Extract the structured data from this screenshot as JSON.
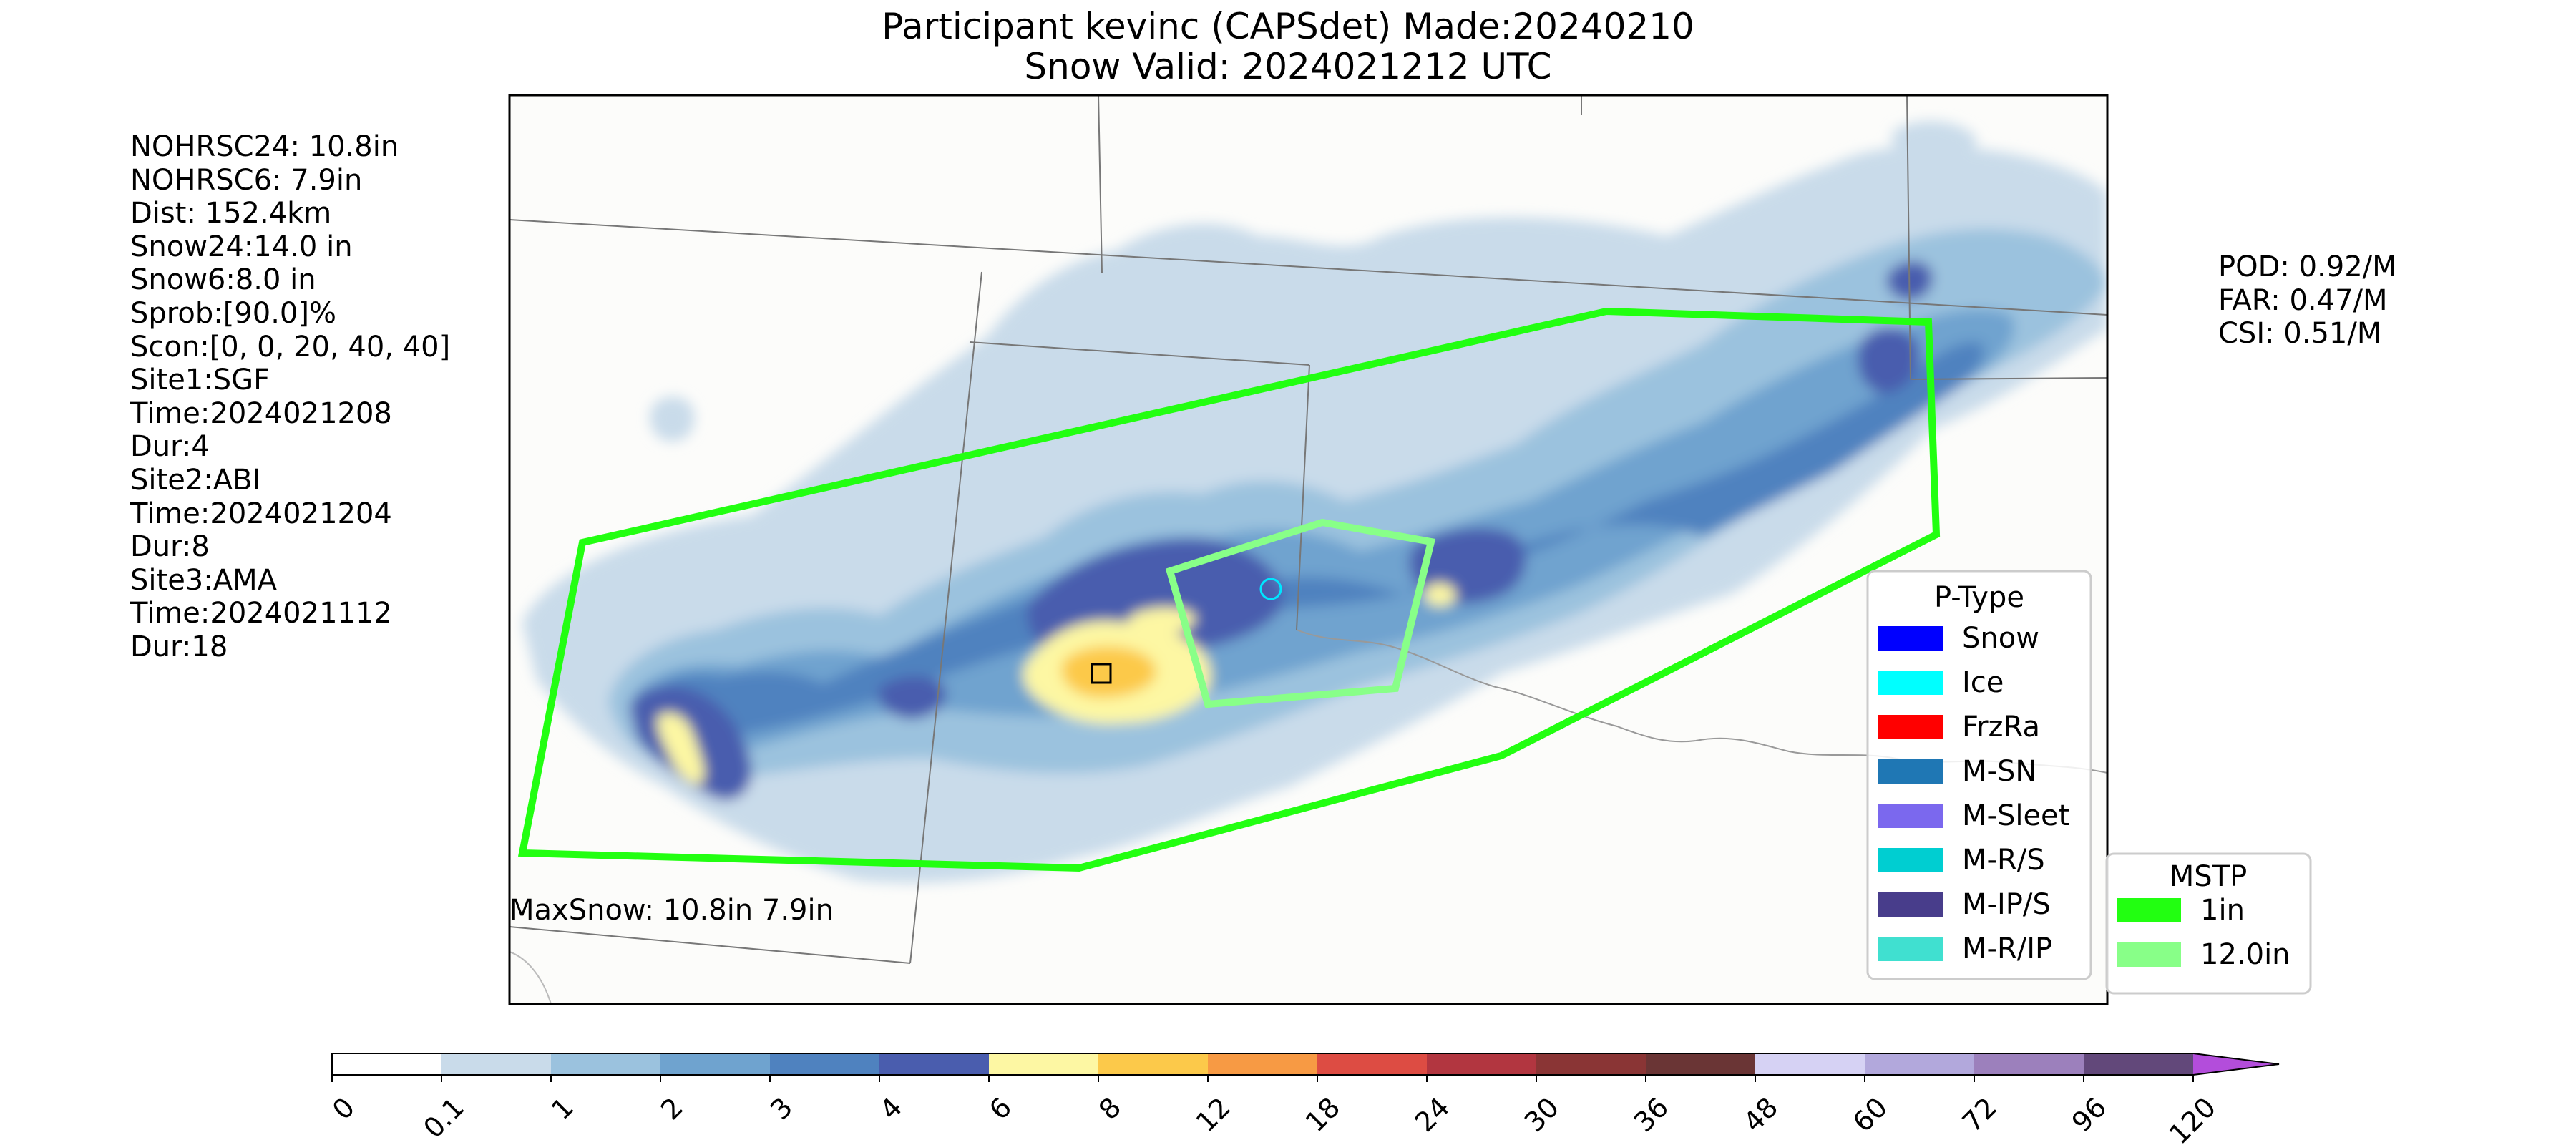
{
  "title_line1": "Participant kevinc (CAPSdet) Made:20240210",
  "title_line2": "Snow Valid: 2024021212 UTC",
  "info_lines": [
    "NOHRSC24: 10.8in",
    "NOHRSC6: 7.9in",
    "Dist: 152.4km",
    "Snow24:14.0 in",
    "Snow6:8.0 in",
    "Sprob:[90.0]%",
    "Scon:[0, 0, 20, 40, 40]",
    "Site1:SGF",
    "Time:2024021208",
    "Dur:4",
    "Site2:ABI",
    "Time:2024021204",
    "Dur:8",
    "Site3:AMA",
    "Time:2024021112",
    "Dur:18"
  ],
  "scores": [
    "POD: 0.92/M",
    "FAR: 0.47/M",
    "CSI: 0.51/M"
  ],
  "max_snow_text": "MaxSnow: 10.8in 7.9in",
  "ptype_legend": {
    "title": "P-Type",
    "items": [
      {
        "label": "Snow",
        "color": "#0000ff"
      },
      {
        "label": "Ice",
        "color": "#00ffff"
      },
      {
        "label": "FrzRa",
        "color": "#ff0000"
      },
      {
        "label": "M-SN",
        "color": "#1f77b4"
      },
      {
        "label": "M-Sleet",
        "color": "#7b68ee"
      },
      {
        "label": "M-R/S",
        "color": "#00ced1"
      },
      {
        "label": "M-IP/S",
        "color": "#483d8b"
      },
      {
        "label": "M-R/IP",
        "color": "#40e0d0"
      }
    ]
  },
  "mstp_legend": {
    "title": "MSTP",
    "items": [
      {
        "label": "1in",
        "color": "#22ff11"
      },
      {
        "label": "12.0in",
        "color": "#88ff88"
      }
    ]
  },
  "colorbar": {
    "ticks": [
      "0",
      "0.1",
      "1",
      "2",
      "3",
      "4",
      "6",
      "8",
      "12",
      "18",
      "24",
      "30",
      "36",
      "48",
      "60",
      "72",
      "96",
      "120"
    ],
    "colors": [
      "#ffffff",
      "#c9dbea",
      "#9bc2de",
      "#6fa3cf",
      "#4f82bf",
      "#4a5dae",
      "#fdf7a3",
      "#fcc94a",
      "#f79a44",
      "#dd4c43",
      "#b23640",
      "#8a3535",
      "#6a3535",
      "#d6d2f4",
      "#b2a8dc",
      "#9c80bc",
      "#62487a"
    ],
    "extend_color": "#b34ddb"
  }
}
